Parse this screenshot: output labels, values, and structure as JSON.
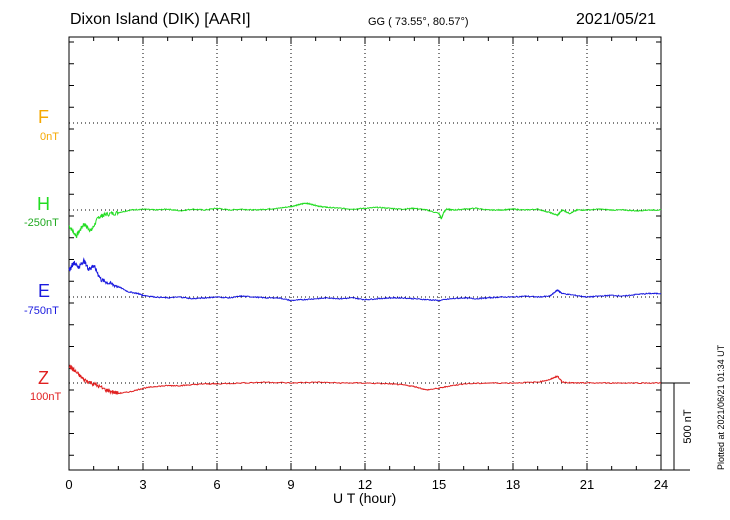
{
  "header": {
    "station": "Dixon Island (DIK)  [AARI]",
    "coords": "GG ( 73.55°,  80.57°)",
    "date": "2021/05/21"
  },
  "plotted_note": "Plotted at 2021/06/21 01:34 UT",
  "chart_data": {
    "type": "line",
    "xlabel": "U T (hour)",
    "xlim": [
      0,
      24
    ],
    "xticks": [
      0,
      3,
      6,
      9,
      12,
      15,
      18,
      21,
      24
    ],
    "scale_bar": {
      "label": "500 nT",
      "value_nT": 500
    },
    "grid": true,
    "series": [
      {
        "name": "F",
        "offset": "0nT",
        "color": "#f5a800",
        "x": [],
        "y": []
      },
      {
        "name": "H",
        "offset": "-250nT",
        "color": "#22dd22",
        "x": [
          0,
          0.3,
          0.6,
          0.9,
          1.2,
          1.5,
          2.0,
          2.5,
          3.0,
          3.5,
          4.0,
          4.5,
          5.0,
          5.5,
          6.0,
          6.5,
          7.0,
          7.5,
          8.0,
          8.5,
          9.0,
          9.3,
          9.6,
          9.9,
          10.2,
          10.5,
          11.0,
          11.5,
          12.0,
          12.5,
          13.0,
          13.5,
          14.0,
          14.5,
          15.0,
          15.1,
          15.2,
          15.3,
          15.6,
          16.0,
          16.5,
          17.0,
          17.5,
          18.0,
          18.5,
          19.0,
          19.5,
          19.8,
          20.0,
          20.3,
          20.6,
          21.0,
          21.5,
          22.0,
          22.5,
          23.0,
          23.5,
          24.0
        ],
        "y": [
          -90,
          -150,
          -80,
          -120,
          -40,
          -25,
          -15,
          0,
          5,
          0,
          5,
          -5,
          5,
          0,
          10,
          0,
          5,
          0,
          5,
          10,
          20,
          30,
          40,
          30,
          20,
          15,
          10,
          5,
          10,
          15,
          10,
          5,
          10,
          0,
          -20,
          -50,
          -10,
          5,
          0,
          5,
          10,
          0,
          0,
          5,
          0,
          5,
          -15,
          -30,
          0,
          -20,
          0,
          0,
          5,
          0,
          0,
          -5,
          0,
          0
        ]
      },
      {
        "name": "E",
        "offset": "-750nT",
        "color": "#1a1adf",
        "x": [
          0,
          0.2,
          0.4,
          0.6,
          0.8,
          1.0,
          1.3,
          1.6,
          2.0,
          2.4,
          2.8,
          3.0,
          3.5,
          4.0,
          4.5,
          5.0,
          5.5,
          6.0,
          6.5,
          7.0,
          7.5,
          8.0,
          8.5,
          9.0,
          9.5,
          10.0,
          10.5,
          11.0,
          11.5,
          12.0,
          12.5,
          13.0,
          13.5,
          14.0,
          14.5,
          15.0,
          15.5,
          16.0,
          16.5,
          17.0,
          17.5,
          18.0,
          18.5,
          19.0,
          19.5,
          19.8,
          20.0,
          20.5,
          21.0,
          21.5,
          22.0,
          22.5,
          23.0,
          23.5,
          24.0
        ],
        "y": [
          150,
          200,
          170,
          210,
          160,
          180,
          100,
          80,
          60,
          30,
          20,
          10,
          0,
          -5,
          0,
          -10,
          -5,
          0,
          -5,
          5,
          0,
          -5,
          -5,
          -20,
          -15,
          -10,
          -5,
          -10,
          -5,
          -15,
          -10,
          -5,
          -5,
          -10,
          -15,
          -20,
          -10,
          -5,
          -10,
          -5,
          0,
          0,
          5,
          0,
          5,
          40,
          20,
          10,
          0,
          5,
          10,
          5,
          15,
          20,
          20
        ]
      },
      {
        "name": "Z",
        "offset": "100nT",
        "color": "#e02020",
        "x": [
          0,
          0.3,
          0.6,
          1.0,
          1.5,
          2.0,
          2.5,
          3.0,
          3.5,
          4.0,
          4.5,
          5.0,
          5.5,
          6.0,
          7.0,
          8.0,
          9.0,
          10.0,
          11.0,
          12.0,
          13.0,
          13.5,
          14.0,
          14.5,
          15.0,
          15.5,
          16.0,
          17.0,
          18.0,
          19.0,
          19.5,
          19.8,
          20.0,
          20.5,
          21.0,
          22.0,
          23.0,
          24.0
        ],
        "y": [
          100,
          60,
          20,
          -5,
          -40,
          -60,
          -50,
          -30,
          -20,
          -15,
          -15,
          -10,
          -5,
          -5,
          0,
          5,
          0,
          5,
          0,
          0,
          -5,
          -10,
          -20,
          -40,
          -30,
          -15,
          -5,
          0,
          0,
          5,
          20,
          40,
          5,
          0,
          0,
          0,
          0,
          0
        ]
      }
    ]
  }
}
